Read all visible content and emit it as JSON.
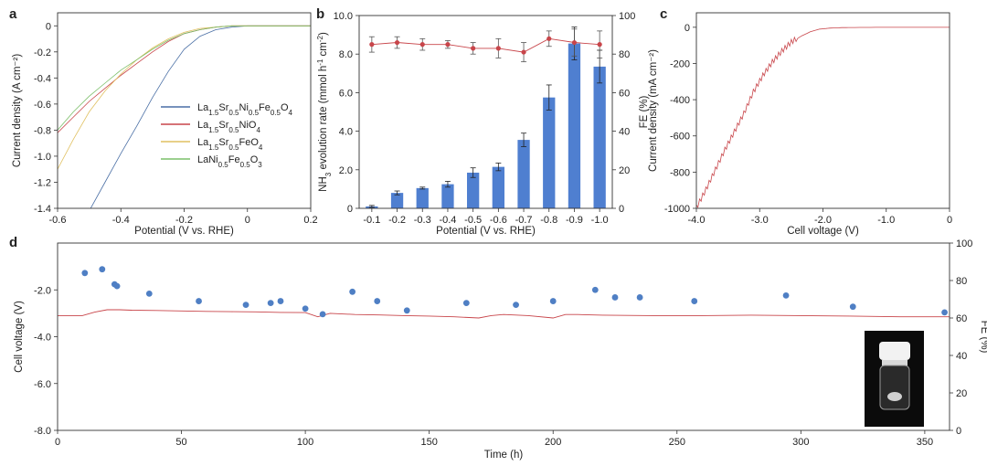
{
  "panels": {
    "a": {
      "label": "a"
    },
    "b": {
      "label": "b"
    },
    "c": {
      "label": "c"
    },
    "d": {
      "label": "d"
    }
  },
  "chart_data": [
    {
      "id": "a",
      "type": "line",
      "xlabel": "Potential (V vs. RHE)",
      "ylabel": "Current density (A cm⁻²)",
      "xlim": [
        -0.6,
        0.2
      ],
      "ylim": [
        -1.4,
        0.1
      ],
      "xticks": [
        "-0.6",
        "-0.4",
        "-0.2",
        "0",
        "0.2"
      ],
      "yticks": [
        "-1.4",
        "-1.2",
        "-1.0",
        "-0.8",
        "-0.6",
        "-0.4",
        "-0.2",
        "0"
      ],
      "legend_position": "center-right",
      "series": [
        {
          "name": "La1.5Sr0.5Ni0.5Fe0.5O4",
          "name_parts": [
            [
              "La",
              false
            ],
            [
              "1.5",
              true
            ],
            [
              "Sr",
              false
            ],
            [
              "0.5",
              true
            ],
            [
              "Ni",
              false
            ],
            [
              "0.5",
              true
            ],
            [
              "Fe",
              false
            ],
            [
              "0.5",
              true
            ],
            [
              "O",
              false
            ],
            [
              "4",
              true
            ]
          ],
          "color": "#4a6fa5",
          "x": [
            -0.5,
            -0.45,
            -0.4,
            -0.35,
            -0.3,
            -0.25,
            -0.2,
            -0.15,
            -0.1,
            -0.05,
            0.0,
            0.05,
            0.1,
            0.2
          ],
          "y": [
            -1.42,
            -1.2,
            -0.98,
            -0.77,
            -0.55,
            -0.35,
            -0.18,
            -0.08,
            -0.03,
            -0.01,
            0.0,
            0.0,
            0.0,
            0.0
          ]
        },
        {
          "name": "La1.5Sr0.5NiO4",
          "name_parts": [
            [
              "La",
              false
            ],
            [
              "1.5",
              true
            ],
            [
              "Sr",
              false
            ],
            [
              "0.5",
              true
            ],
            [
              "NiO",
              false
            ],
            [
              "4",
              true
            ]
          ],
          "color": "#c8454a",
          "x": [
            -0.6,
            -0.55,
            -0.5,
            -0.45,
            -0.4,
            -0.35,
            -0.3,
            -0.25,
            -0.2,
            -0.15,
            -0.1,
            -0.05,
            0.0,
            0.1,
            0.2
          ],
          "y": [
            -0.82,
            -0.7,
            -0.58,
            -0.48,
            -0.38,
            -0.29,
            -0.2,
            -0.12,
            -0.06,
            -0.03,
            -0.01,
            0.0,
            0.0,
            0.0,
            0.0
          ]
        },
        {
          "name": "La1.5Sr0.5FeO4",
          "name_parts": [
            [
              "La",
              false
            ],
            [
              "1.5",
              true
            ],
            [
              "Sr",
              false
            ],
            [
              "0.5",
              true
            ],
            [
              "FeO",
              false
            ],
            [
              "4",
              true
            ]
          ],
          "color": "#e0c060",
          "x": [
            -0.6,
            -0.55,
            -0.5,
            -0.45,
            -0.4,
            -0.35,
            -0.3,
            -0.25,
            -0.2,
            -0.15,
            -0.1,
            -0.05,
            0.0,
            0.1,
            0.2
          ],
          "y": [
            -1.1,
            -0.87,
            -0.66,
            -0.5,
            -0.37,
            -0.26,
            -0.17,
            -0.1,
            -0.05,
            -0.02,
            -0.01,
            0.0,
            0.0,
            0.0,
            0.0
          ]
        },
        {
          "name": "LaNi0.5Fe0.5O3",
          "name_parts": [
            [
              "LaNi",
              false
            ],
            [
              "0.5",
              true
            ],
            [
              "Fe",
              false
            ],
            [
              "0.5",
              true
            ],
            [
              "O",
              false
            ],
            [
              "3",
              true
            ]
          ],
          "color": "#7cbf6a",
          "x": [
            -0.6,
            -0.55,
            -0.5,
            -0.45,
            -0.4,
            -0.35,
            -0.3,
            -0.25,
            -0.2,
            -0.15,
            -0.1,
            -0.05,
            0.0,
            0.1,
            0.2
          ],
          "y": [
            -0.8,
            -0.66,
            -0.54,
            -0.44,
            -0.34,
            -0.26,
            -0.18,
            -0.11,
            -0.06,
            -0.03,
            -0.01,
            0.0,
            0.0,
            0.0,
            0.0
          ]
        }
      ]
    },
    {
      "id": "b",
      "type": "bar",
      "xlabel": "Potential (V vs. RHE)",
      "ylabel_parts": [
        [
          "NH",
          false
        ],
        [
          "3",
          true
        ],
        [
          " evolution rate (mmol h",
          false
        ],
        [
          "-1",
          "sup"
        ],
        [
          " cm",
          false
        ],
        [
          "-2",
          "sup"
        ],
        [
          ")",
          false
        ]
      ],
      "ylabel_right": "FE (%)",
      "categories": [
        "-0.1",
        "-0.2",
        "-0.3",
        "-0.4",
        "-0.5",
        "-0.6",
        "-0.7",
        "-0.8",
        "-0.9",
        "-1.0"
      ],
      "ylim": [
        0,
        10
      ],
      "yticks": [
        "0",
        "2.0",
        "4.0",
        "6.0",
        "8.0",
        "10.0"
      ],
      "ylim_right": [
        0,
        100
      ],
      "yticks_right": [
        "0",
        "20",
        "40",
        "60",
        "80",
        "100"
      ],
      "bar_color": "#4f7fd0",
      "line_color": "#c8454a",
      "series": [
        {
          "kind": "bar",
          "values": [
            0.1,
            0.8,
            1.05,
            1.25,
            1.85,
            2.15,
            3.55,
            5.75,
            8.55,
            7.35
          ],
          "errors": [
            0.05,
            0.1,
            0.05,
            0.15,
            0.25,
            0.2,
            0.35,
            0.65,
            0.85,
            0.85
          ]
        },
        {
          "kind": "line",
          "axis": "right",
          "values": [
            85,
            86,
            85,
            85,
            83,
            83,
            81,
            88,
            86,
            85
          ],
          "errors": [
            4,
            3,
            3,
            2,
            3,
            5,
            5,
            4,
            7,
            7
          ]
        }
      ]
    },
    {
      "id": "c",
      "type": "line",
      "xlabel": "Cell voltage (V)",
      "ylabel": "Current density (mA cm⁻²)",
      "xlim": [
        -4.0,
        0
      ],
      "ylim": [
        -1000,
        80
      ],
      "xticks": [
        "-4.0",
        "-3.0",
        "-2.0",
        "-1.0",
        "0"
      ],
      "yticks": [
        "-1000",
        "-800",
        "-600",
        "-400",
        "-200",
        "0"
      ],
      "series": [
        {
          "color": "#c8454a",
          "x": [
            -4.0,
            -3.85,
            -3.7,
            -3.55,
            -3.4,
            -3.25,
            -3.1,
            -2.95,
            -2.8,
            -2.65,
            -2.5,
            -2.35,
            -2.2,
            -2.05,
            -1.9,
            -1.7,
            -1.5,
            -1.0,
            -0.5,
            0.0
          ],
          "y": [
            -1000,
            -900,
            -790,
            -680,
            -580,
            -480,
            -360,
            -270,
            -195,
            -135,
            -85,
            -50,
            -25,
            -10,
            -5,
            -2,
            -1,
            0,
            0,
            0
          ]
        }
      ]
    },
    {
      "id": "d",
      "type": "scatter",
      "xlabel": "Time (h)",
      "ylabel": "Cell voltage (V)",
      "ylabel_right": "FE (%)",
      "xlim": [
        0,
        360
      ],
      "ylim": [
        -8.0,
        0
      ],
      "ylim_right": [
        0,
        100
      ],
      "xticks": [
        "0",
        "50",
        "100",
        "150",
        "200",
        "250",
        "300",
        "350"
      ],
      "yticks": [
        "-8.0",
        "-6.0",
        "-4.0",
        "-2.0"
      ],
      "yticks_right": [
        "0",
        "20",
        "40",
        "60",
        "80",
        "100"
      ],
      "point_color": "#4f7fc4",
      "line_color": "#c8454a",
      "series": [
        {
          "kind": "line",
          "axis": "left",
          "x": [
            0,
            10,
            15,
            20,
            25,
            30,
            40,
            50,
            60,
            70,
            80,
            90,
            100,
            105,
            110,
            120,
            130,
            140,
            150,
            160,
            170,
            175,
            180,
            190,
            200,
            205,
            210,
            220,
            240,
            260,
            280,
            300,
            320,
            340,
            360
          ],
          "y": [
            -3.1,
            -3.1,
            -2.95,
            -2.85,
            -2.85,
            -2.87,
            -2.88,
            -2.9,
            -2.92,
            -2.93,
            -2.94,
            -2.96,
            -2.97,
            -3.15,
            -3.0,
            -3.05,
            -3.07,
            -3.1,
            -3.12,
            -3.15,
            -3.2,
            -3.1,
            -3.05,
            -3.1,
            -3.2,
            -3.05,
            -3.05,
            -3.08,
            -3.1,
            -3.1,
            -3.08,
            -3.1,
            -3.12,
            -3.15,
            -3.15
          ]
        },
        {
          "kind": "scatter",
          "axis": "right",
          "x": [
            11,
            18,
            23,
            24,
            37,
            57,
            76,
            86,
            90,
            100,
            107,
            119,
            129,
            141,
            165,
            185,
            200,
            217,
            225,
            235,
            257,
            294,
            321,
            358
          ],
          "y": [
            84,
            86,
            78,
            77,
            73,
            69,
            67,
            68,
            69,
            65,
            62,
            74,
            69,
            64,
            68,
            67,
            69,
            75,
            71,
            71,
            69,
            72,
            66,
            63
          ]
        }
      ]
    }
  ]
}
